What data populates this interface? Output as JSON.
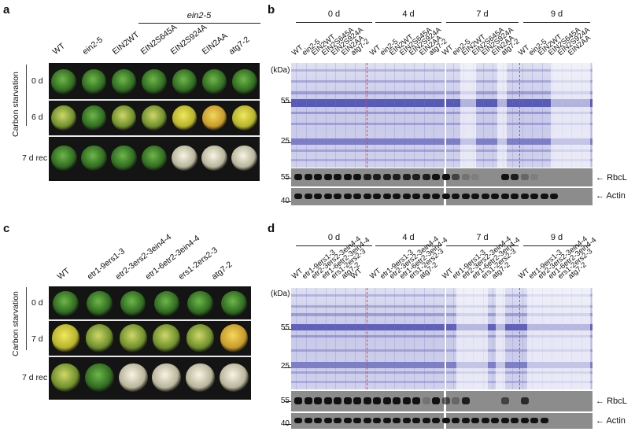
{
  "panels": {
    "a": {
      "letter": "a",
      "group_label": "ein2-5",
      "columns": [
        "WT",
        "ein2-5",
        "EIN2WT",
        "EIN2S645A",
        "EIN2S924A",
        "EIN2AA",
        "atg7-2"
      ],
      "rows": [
        "0 d",
        "6 d",
        "7 d rec"
      ],
      "side_label": "Carbon starvation"
    },
    "b": {
      "letter": "b",
      "times": [
        "0 d",
        "4 d",
        "7 d",
        "9 d"
      ],
      "lanes": [
        "WT",
        "ein2-5",
        "EIN2WT",
        "EIN2S645A",
        "EIN2S924A",
        "EIN2AA",
        "atg7-2"
      ],
      "kda_label": "(kDa)",
      "gel_markers": [
        "55",
        "25"
      ],
      "blot_markers": [
        "55",
        "40"
      ],
      "blot_labels": [
        "RbcL",
        "Actin"
      ]
    },
    "c": {
      "letter": "c",
      "columns": [
        "WT",
        "etr1-9ers1-3",
        "etr2-3ers2-3ein4-4",
        "etr1-6etr2-3ein4-4",
        "ers1-2ers2-3",
        "atg7-2"
      ],
      "rows": [
        "0 d",
        "7 d",
        "7 d rec"
      ],
      "side_label": "Carbon starvation"
    },
    "d": {
      "letter": "d",
      "times": [
        "0 d",
        "4 d",
        "7 d",
        "9 d"
      ],
      "lanes": [
        "WT",
        "etr1-9ers1-3",
        "etr2-3ers2-3ein4-4",
        "etr1-6etr2-3ein4-4",
        "ers1-2ers2-3",
        "atg7-2"
      ],
      "kda_label": "(kDa)",
      "gel_markers": [
        "55",
        "25"
      ],
      "blot_markers": [
        "55",
        "40"
      ],
      "blot_labels": [
        "RbcL",
        "Actin"
      ]
    }
  },
  "colors": {
    "photo_bg": "#111111",
    "healthy_green": "#3f8a2a",
    "yellow": "#d8d238",
    "bleached": "#e8e6cf",
    "gel_blue": "#4a4db0",
    "red_dash": "#e04040"
  }
}
